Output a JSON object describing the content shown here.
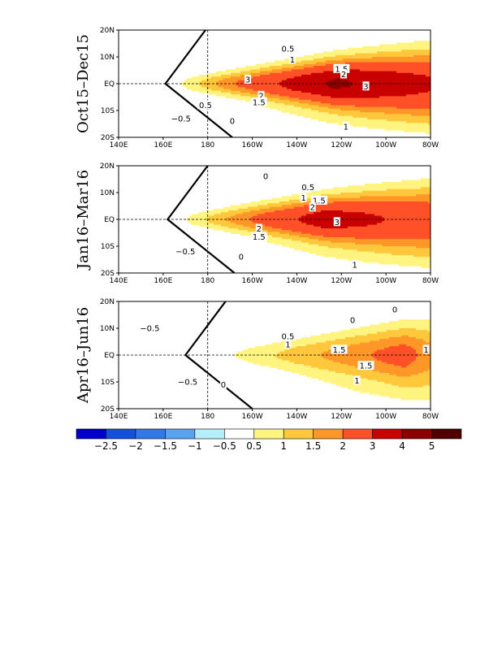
{
  "chart_data": {
    "type": "heatmap",
    "levels": [
      -2.5,
      -2,
      -1.5,
      -1,
      -0.5,
      0.5,
      1,
      1.5,
      2,
      3,
      4,
      5
    ],
    "level_labels": [
      "−2.5",
      "−2",
      "−1.5",
      "−1",
      "−0.5",
      "0.5",
      "1",
      "1.5",
      "2",
      "3",
      "4",
      "5"
    ],
    "fill_colors": [
      "#0000cd",
      "#1550dc",
      "#2f78e6",
      "#5aa2ef",
      "#b4eefa",
      "#ffffff",
      "#fff480",
      "#ffc83c",
      "#ff9628",
      "#ff5028",
      "#c80000",
      "#8c0000",
      "#500000"
    ],
    "x_ticks": [
      "140E",
      "160E",
      "180",
      "160W",
      "140W",
      "120W",
      "100W",
      "80W"
    ],
    "y_ticks": [
      "20S",
      "10S",
      "EQ",
      "10N",
      "20N"
    ],
    "xlim": [
      140,
      280
    ],
    "ylim": [
      -20,
      20
    ],
    "panels": [
      {
        "period": "Oct15–Dec15",
        "peak_longitude": 237,
        "max_value": 4.3,
        "west_extent": 162,
        "zero_contour_west": 161,
        "contour_labels": [
          {
            "text": "0.5",
            "lon": 216,
            "lat": 13
          },
          {
            "text": "1",
            "lon": 218,
            "lat": 9
          },
          {
            "text": "1.5",
            "lon": 240,
            "lat": 5.5
          },
          {
            "text": "2",
            "lon": 241,
            "lat": 3.5
          },
          {
            "text": "3",
            "lon": 198,
            "lat": 1.5
          },
          {
            "text": "3",
            "lon": 251,
            "lat": -1
          },
          {
            "text": "2",
            "lon": 204,
            "lat": -4.5
          },
          {
            "text": "1.5",
            "lon": 203,
            "lat": -7
          },
          {
            "text": "0.5",
            "lon": 179,
            "lat": -8
          },
          {
            "text": "−0.5",
            "lon": 168,
            "lat": -13
          },
          {
            "text": "0",
            "lon": 191,
            "lat": -14
          },
          {
            "text": "1",
            "lon": 242,
            "lat": -16
          }
        ]
      },
      {
        "period": "Jan16–Mar16",
        "peak_longitude": 233,
        "max_value": 3.6,
        "west_extent": 163,
        "zero_contour_west": 162,
        "contour_labels": [
          {
            "text": "0",
            "lon": 206,
            "lat": 16
          },
          {
            "text": "0.5",
            "lon": 225,
            "lat": 12
          },
          {
            "text": "1",
            "lon": 223,
            "lat": 8
          },
          {
            "text": "1.5",
            "lon": 230,
            "lat": 7
          },
          {
            "text": "2",
            "lon": 227,
            "lat": 4.5
          },
          {
            "text": "3",
            "lon": 238,
            "lat": -1
          },
          {
            "text": "2",
            "lon": 203,
            "lat": -3.5
          },
          {
            "text": "1.5",
            "lon": 203,
            "lat": -6.5
          },
          {
            "text": "−0.5",
            "lon": 170,
            "lat": -12
          },
          {
            "text": "0",
            "lon": 195,
            "lat": -14
          },
          {
            "text": "1",
            "lon": 246,
            "lat": -17
          }
        ]
      },
      {
        "period": "Apr16–Jun16",
        "peak_longitude": 268,
        "max_value": 2.4,
        "west_extent": 176,
        "zero_contour_west": 170,
        "contour_labels": [
          {
            "text": "−0.5",
            "lon": 154,
            "lat": 10
          },
          {
            "text": "0",
            "lon": 245,
            "lat": 13
          },
          {
            "text": "0",
            "lon": 264,
            "lat": 17
          },
          {
            "text": "0.5",
            "lon": 216,
            "lat": 7
          },
          {
            "text": "1",
            "lon": 216,
            "lat": 4
          },
          {
            "text": "1.5",
            "lon": 239,
            "lat": 2
          },
          {
            "text": "1.5",
            "lon": 251,
            "lat": -4
          },
          {
            "text": "1",
            "lon": 247,
            "lat": -9.5
          },
          {
            "text": "1",
            "lon": 278,
            "lat": 2
          },
          {
            "text": "−0.5",
            "lon": 171,
            "lat": -10
          },
          {
            "text": "0",
            "lon": 187,
            "lat": -11
          }
        ]
      }
    ]
  }
}
